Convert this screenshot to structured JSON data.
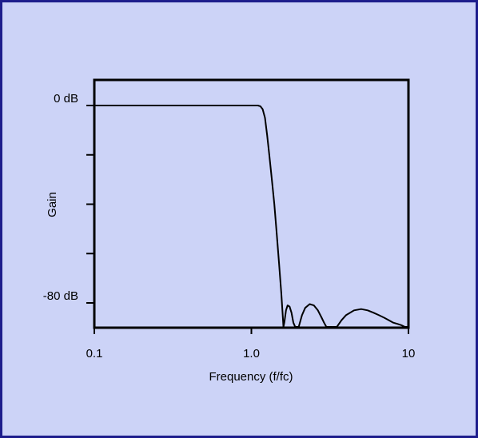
{
  "colors": {
    "panel_bg": "#ccd3f7",
    "panel_border": "#1d1d8c",
    "plot_bg": "#ccd3f7",
    "line": "#000000"
  },
  "chart_data": {
    "type": "line",
    "title": "",
    "xlabel": "Frequency (f/fc)",
    "ylabel": "Gain",
    "x_scale": "log",
    "xlim": [
      0.1,
      10
    ],
    "ylim": [
      -90,
      0
    ],
    "x_ticks": [
      {
        "value": 0.1,
        "label": "0.1"
      },
      {
        "value": 1.0,
        "label": "1.0"
      },
      {
        "value": 10,
        "label": "10"
      }
    ],
    "y_ticks": [
      {
        "value": 0,
        "label": "0 dB"
      },
      {
        "value": -20,
        "label": ""
      },
      {
        "value": -40,
        "label": ""
      },
      {
        "value": -60,
        "label": ""
      },
      {
        "value": -80,
        "label": "-80 dB"
      }
    ],
    "grid": false,
    "series": [
      {
        "x": [
          0.1,
          0.5,
          1.0,
          1.1,
          1.14,
          1.18,
          1.22,
          1.26,
          1.3,
          1.35,
          1.4,
          1.45,
          1.5,
          1.55,
          1.58,
          1.6,
          1.62,
          1.66,
          1.7,
          1.75,
          1.8,
          1.85,
          1.9,
          1.95,
          2.0,
          2.1,
          2.2,
          2.35,
          2.5,
          2.65,
          2.8,
          2.9,
          3.0,
          3.1,
          3.3,
          3.5,
          3.75,
          4.0,
          4.5,
          5.0,
          5.5,
          6.0,
          6.5,
          7.0,
          7.5,
          8.0,
          8.5,
          9.0,
          9.5,
          10
        ],
        "y": [
          0,
          0,
          0,
          0,
          -0.3,
          -1.5,
          -5,
          -12,
          -20,
          -30,
          -40,
          -52,
          -64,
          -76,
          -84,
          -90,
          -88,
          -83,
          -81,
          -81.5,
          -84,
          -88,
          -90,
          -90,
          -90,
          -85,
          -82,
          -80.5,
          -81,
          -83,
          -86,
          -88,
          -90,
          -90,
          -90,
          -90,
          -87,
          -85,
          -83,
          -82.5,
          -83,
          -84,
          -85,
          -86,
          -87,
          -88,
          -88.5,
          -89,
          -89.5,
          -90
        ]
      }
    ]
  }
}
